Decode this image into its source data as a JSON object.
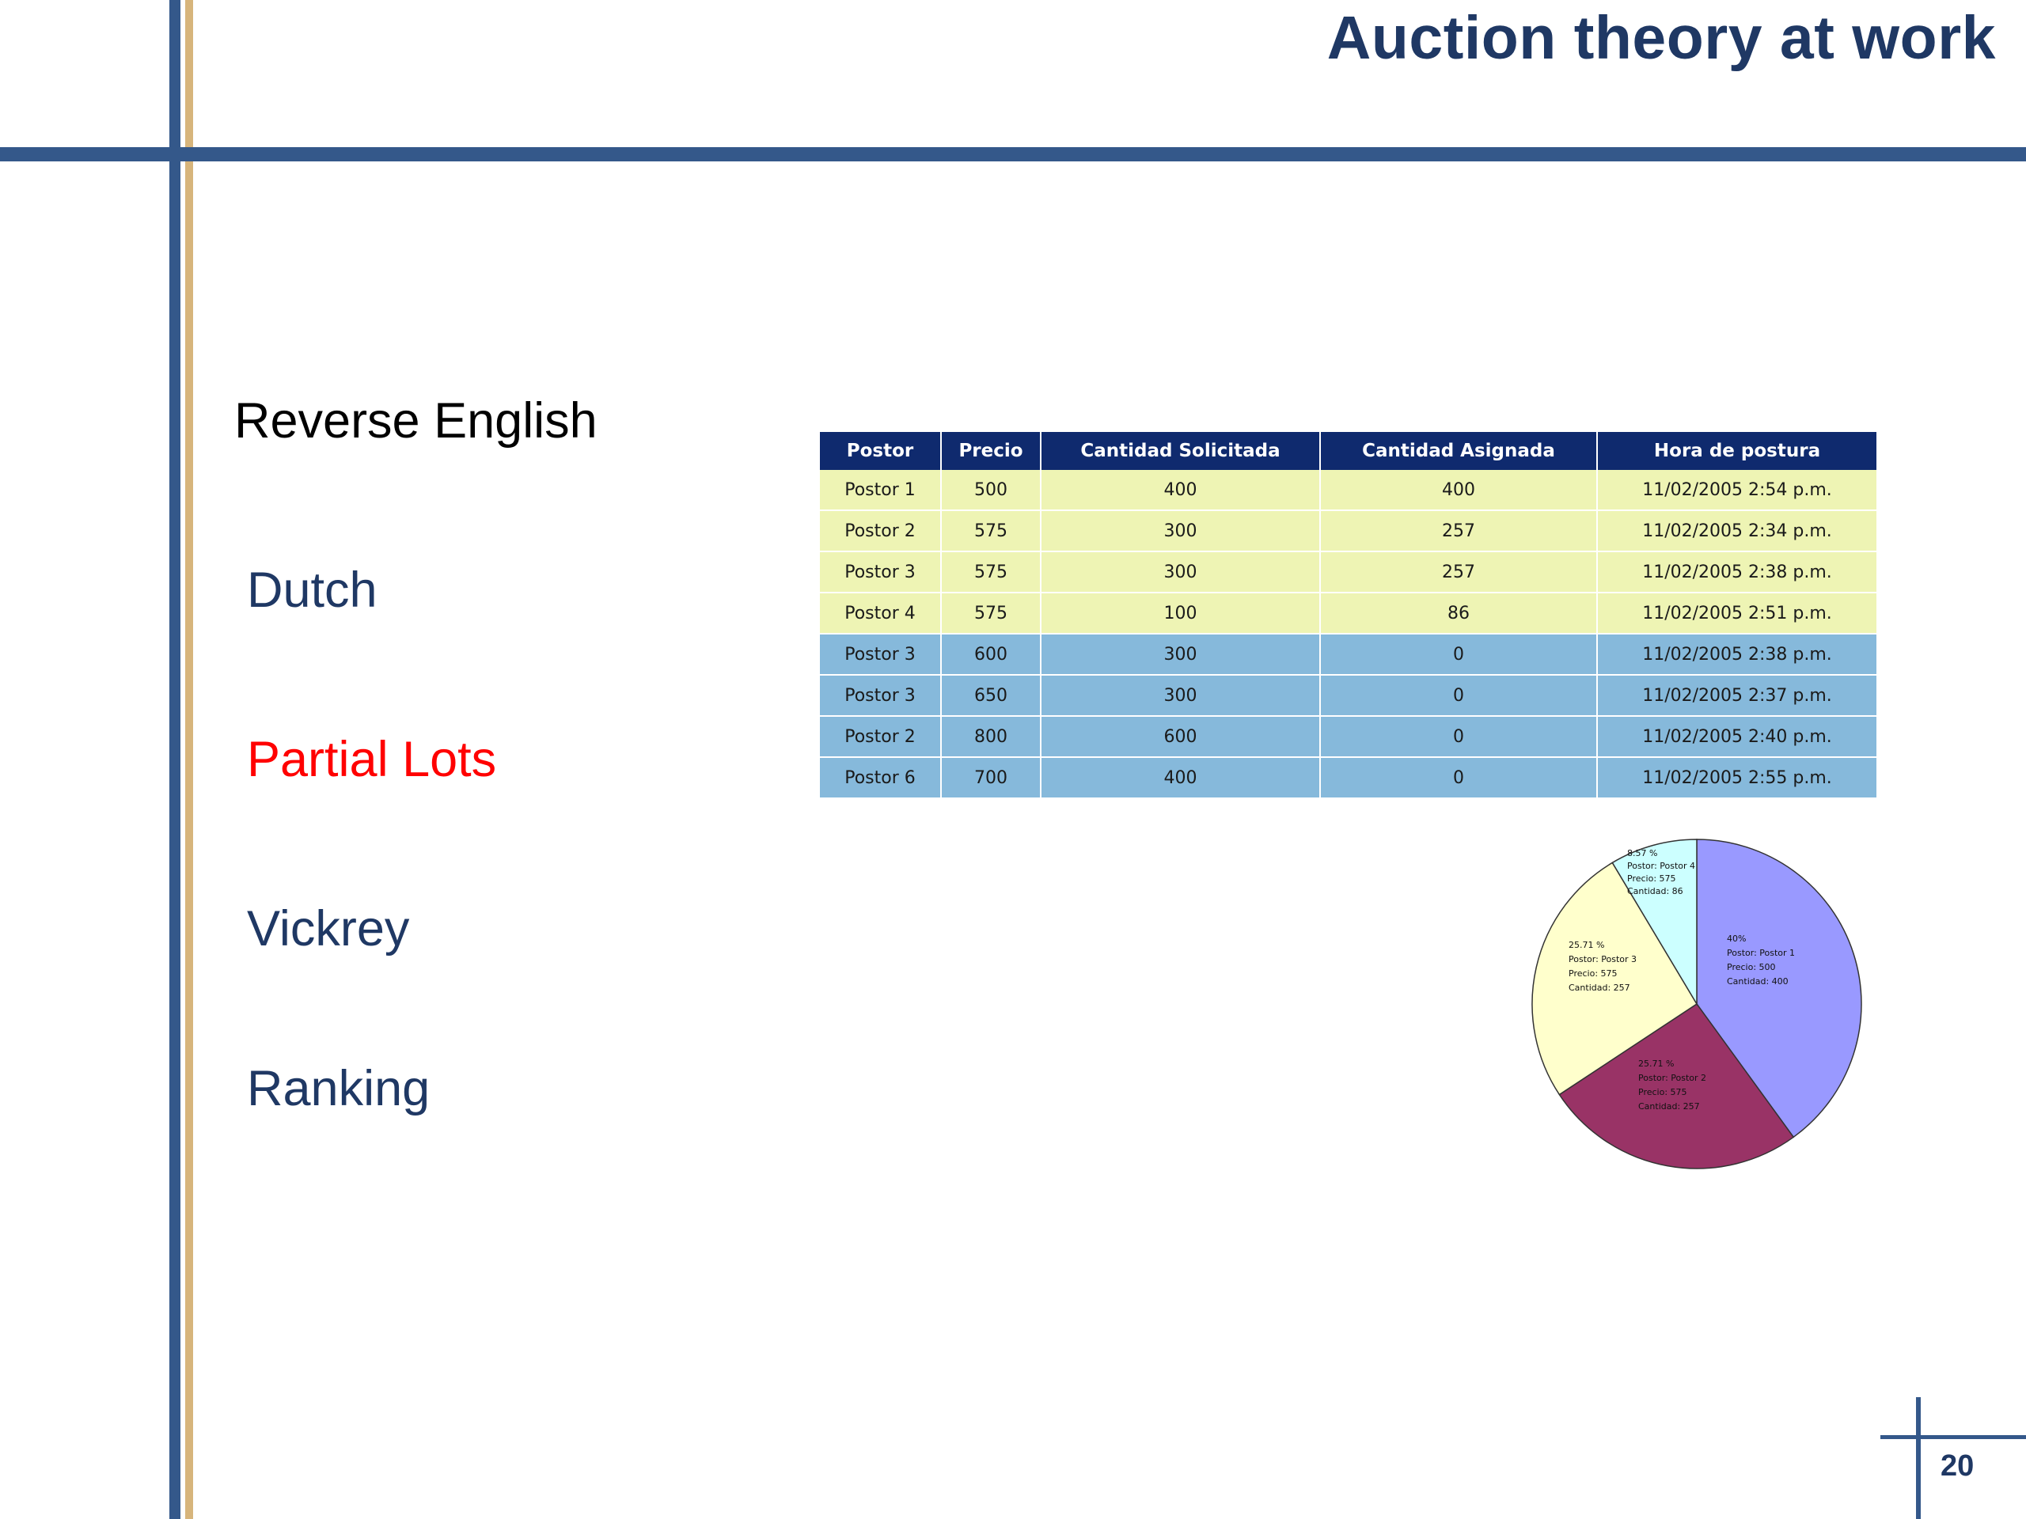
{
  "slide": {
    "title": "Auction theory at work",
    "page_number": "20"
  },
  "bullets": [
    {
      "label": "Reverse English",
      "color": "#000000"
    },
    {
      "label": "Dutch",
      "color": "#1f3864"
    },
    {
      "label": "Partial Lots",
      "color": "#ff0000"
    },
    {
      "label": "Vickrey",
      "color": "#1f3864"
    },
    {
      "label": "Ranking",
      "color": "#1f3864"
    }
  ],
  "table": {
    "headers": [
      "Postor",
      "Precio",
      "Cantidad Solicitada",
      "Cantidad Asignada",
      "Hora de postura"
    ],
    "rows": [
      [
        "Postor 1",
        "500",
        "400",
        "400",
        "11/02/2005 2:54 p.m."
      ],
      [
        "Postor 2",
        "575",
        "300",
        "257",
        "11/02/2005 2:34 p.m."
      ],
      [
        "Postor 3",
        "575",
        "300",
        "257",
        "11/02/2005 2:38 p.m."
      ],
      [
        "Postor 4",
        "575",
        "100",
        "86",
        "11/02/2005 2:51 p.m."
      ],
      [
        "Postor 3",
        "600",
        "300",
        "0",
        "11/02/2005 2:38 p.m."
      ],
      [
        "Postor 3",
        "650",
        "300",
        "0",
        "11/02/2005 2:37 p.m."
      ],
      [
        "Postor 2",
        "800",
        "600",
        "0",
        "11/02/2005 2:40 p.m."
      ],
      [
        "Postor 6",
        "700",
        "400",
        "0",
        "11/02/2005 2:55 p.m."
      ]
    ],
    "assigned_row_color": "#eef4b4",
    "unassigned_row_color": "#86b9db",
    "header_color": "#0f2a6e"
  },
  "pie": {
    "type": "pie",
    "slices": [
      {
        "percent": 40,
        "color": "#9999ff",
        "lines": [
          "40%",
          "Postor: Postor 1",
          "Precio: 500",
          "Cantidad: 400"
        ]
      },
      {
        "percent": 25.71,
        "color": "#993366",
        "lines": [
          "25.71 %",
          "Postor: Postor 2",
          "Precio: 575",
          "Cantidad: 257"
        ]
      },
      {
        "percent": 25.71,
        "color": "#ffffcc",
        "lines": [
          "25.71 %",
          "Postor: Postor 3",
          "Precio: 575",
          "Cantidad: 257"
        ]
      },
      {
        "percent": 8.57,
        "color": "#ccffff",
        "lines": [
          "8.57 %",
          "Postor: Postor 4",
          "Precio: 575",
          "Cantidad: 86"
        ]
      }
    ]
  }
}
